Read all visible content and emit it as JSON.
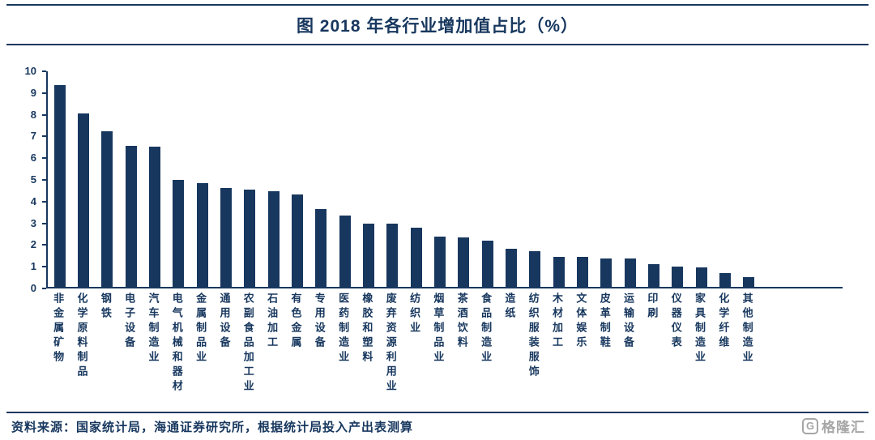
{
  "header": {
    "title": "图  2018 年各行业增加值占比（%）"
  },
  "footer": {
    "source": "资料来源：国家统计局，海通证券研究所，根据统计局投入产出表测算",
    "logo_icon": "G",
    "logo_text": "格隆汇"
  },
  "colors": {
    "bar": "#17375E",
    "axis": "#17375E",
    "title": "#17375E",
    "logo_gray": "#A6A6A6"
  },
  "chart_data": {
    "type": "bar",
    "title": "2018 年各行业增加值占比（%）",
    "xlabel": "",
    "ylabel": "",
    "ylim": [
      0,
      10
    ],
    "yticks": [
      0,
      1,
      2,
      3,
      4,
      5,
      6,
      7,
      8,
      9,
      10
    ],
    "grid": false,
    "legend": null,
    "bar_color": "#17375E",
    "categories": [
      "非金属矿物",
      "化学原料制品",
      "钢铁",
      "电子设备",
      "汽车制造业",
      "电气机械和器材",
      "金属制品业",
      "通用设备",
      "农副食品加工业",
      "石油加工",
      "有色金属",
      "专用设备",
      "医药制造业",
      "橡胶和塑料",
      "废弃资源利用业",
      "纺织业",
      "烟草制品业",
      "茶酒饮料",
      "食品制造业",
      "造纸",
      "纺织服装服饰",
      "木材加工",
      "文体娱乐",
      "皮革制鞋",
      "运输设备",
      "印刷",
      "仪器仪表",
      "家具制造业",
      "化学纤维",
      "其他制造业"
    ],
    "values": [
      9.35,
      8.05,
      7.2,
      6.55,
      6.5,
      4.95,
      4.8,
      4.6,
      4.5,
      4.45,
      4.3,
      3.6,
      3.3,
      2.95,
      2.95,
      2.75,
      2.35,
      2.3,
      2.15,
      1.75,
      1.65,
      1.4,
      1.4,
      1.3,
      1.3,
      1.05,
      0.95,
      0.9,
      0.65,
      0.45
    ]
  }
}
